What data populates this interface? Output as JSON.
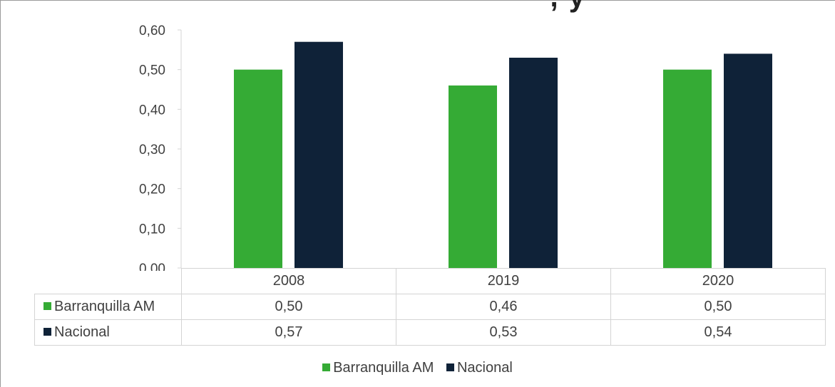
{
  "chart_data": {
    "type": "bar",
    "title": "",
    "categories": [
      "2008",
      "2019",
      "2020"
    ],
    "series": [
      {
        "name": "Barranquilla AM",
        "values": [
          0.5,
          0.46,
          0.5
        ],
        "labels": [
          "0,50",
          "0,46",
          "0,50"
        ],
        "color": "#35ab35"
      },
      {
        "name": "Nacional",
        "values": [
          0.57,
          0.53,
          0.54
        ],
        "labels": [
          "0,57",
          "0,53",
          "0,54"
        ],
        "color": "#0f2238"
      }
    ],
    "ylim": [
      0,
      0.6
    ],
    "yticks": [
      "0,00",
      "0,10",
      "0,20",
      "0,30",
      "0,40",
      "0,50",
      "0,60"
    ],
    "grid": false,
    "data_table": true,
    "legend": "bottom",
    "title_fragment": "',  y"
  }
}
